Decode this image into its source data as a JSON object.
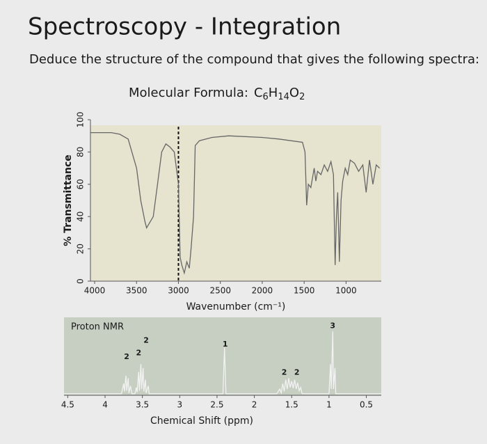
{
  "header": {
    "title": "Spectroscopy - Integration",
    "instruction": "Deduce the structure of the compound that gives the following spectra:",
    "molecular_formula": {
      "label": "Molecular Formula:",
      "atoms": [
        {
          "symbol": "C",
          "count": 6
        },
        {
          "symbol": "H",
          "count": 14
        },
        {
          "symbol": "O",
          "count": 2
        }
      ]
    }
  },
  "chart_data": [
    {
      "type": "line",
      "xlabel": "Wavenumber (cm⁻¹)",
      "ylabel": "% Transmittance",
      "color": "#666666",
      "xlim": [
        4050,
        580
      ],
      "xticks": [
        4000,
        3500,
        3000,
        2500,
        2000,
        1500,
        1000
      ],
      "ylim": [
        0,
        100
      ],
      "yticks": [
        0,
        20,
        40,
        60,
        80,
        100
      ],
      "reference_line": 3000,
      "x": [
        4050,
        4000,
        3800,
        3700,
        3600,
        3500,
        3450,
        3400,
        3380,
        3300,
        3250,
        3200,
        3150,
        3100,
        3050,
        3000,
        2980,
        2960,
        2930,
        2900,
        2870,
        2850,
        2820,
        2800,
        2750,
        2600,
        2400,
        2000,
        1800,
        1520,
        1490,
        1470,
        1450,
        1420,
        1380,
        1360,
        1340,
        1300,
        1260,
        1220,
        1180,
        1150,
        1130,
        1115,
        1100,
        1080,
        1060,
        1040,
        1010,
        980,
        950,
        900,
        850,
        800,
        760,
        720,
        680,
        640,
        600
      ],
      "values": [
        92,
        92,
        92,
        91,
        88,
        70,
        50,
        37,
        33,
        40,
        60,
        80,
        85,
        83,
        80,
        60,
        15,
        10,
        5,
        12,
        8,
        20,
        40,
        84,
        87,
        89,
        90,
        89,
        88,
        86,
        80,
        47,
        60,
        58,
        70,
        62,
        68,
        66,
        72,
        68,
        74,
        66,
        10,
        40,
        55,
        12,
        50,
        62,
        70,
        66,
        75,
        73,
        68,
        72,
        55,
        75,
        60,
        72,
        70
      ]
    },
    {
      "type": "line",
      "title": "Proton NMR",
      "xlabel": "Chemical Shift (ppm)",
      "color": "#f2f2f2",
      "xlim": [
        4.55,
        0.3
      ],
      "xticks": [
        4.5,
        4.0,
        3.5,
        3.0,
        2.5,
        2.0,
        1.5,
        1.0,
        0.5
      ],
      "ylim": [
        0,
        100
      ],
      "x": [
        4.55,
        3.78,
        3.75,
        3.74,
        3.72,
        3.71,
        3.69,
        3.68,
        3.66,
        3.64,
        3.6,
        3.58,
        3.57,
        3.55,
        3.54,
        3.52,
        3.51,
        3.49,
        3.48,
        3.46,
        3.45,
        3.42,
        3.41,
        2.5,
        2.42,
        2.4,
        2.38,
        1.7,
        1.66,
        1.64,
        1.62,
        1.6,
        1.58,
        1.56,
        1.54,
        1.52,
        1.5,
        1.48,
        1.46,
        1.44,
        1.42,
        1.4,
        1.38,
        1.36,
        1.0,
        0.98,
        0.97,
        0.95,
        0.94,
        0.92,
        0.91,
        0.3
      ],
      "values": [
        2,
        2,
        15,
        5,
        25,
        6,
        22,
        3,
        12,
        2,
        2,
        10,
        4,
        30,
        6,
        40,
        8,
        35,
        5,
        20,
        3,
        12,
        2,
        2,
        2,
        61,
        2,
        2,
        8,
        3,
        15,
        5,
        20,
        8,
        22,
        10,
        18,
        9,
        20,
        8,
        16,
        6,
        10,
        2,
        2,
        40,
        8,
        82,
        8,
        35,
        2,
        2
      ],
      "annotations": [
        {
          "text": "2",
          "x": 3.71,
          "y": 49
        },
        {
          "text": "2",
          "x": 3.55,
          "y": 54
        },
        {
          "text": "2",
          "x": 3.45,
          "y": 70
        },
        {
          "text": "1",
          "x": 2.39,
          "y": 65
        },
        {
          "text": "2",
          "x": 1.6,
          "y": 29
        },
        {
          "text": "2",
          "x": 1.43,
          "y": 29
        },
        {
          "text": "3",
          "x": 0.95,
          "y": 89
        }
      ]
    }
  ]
}
